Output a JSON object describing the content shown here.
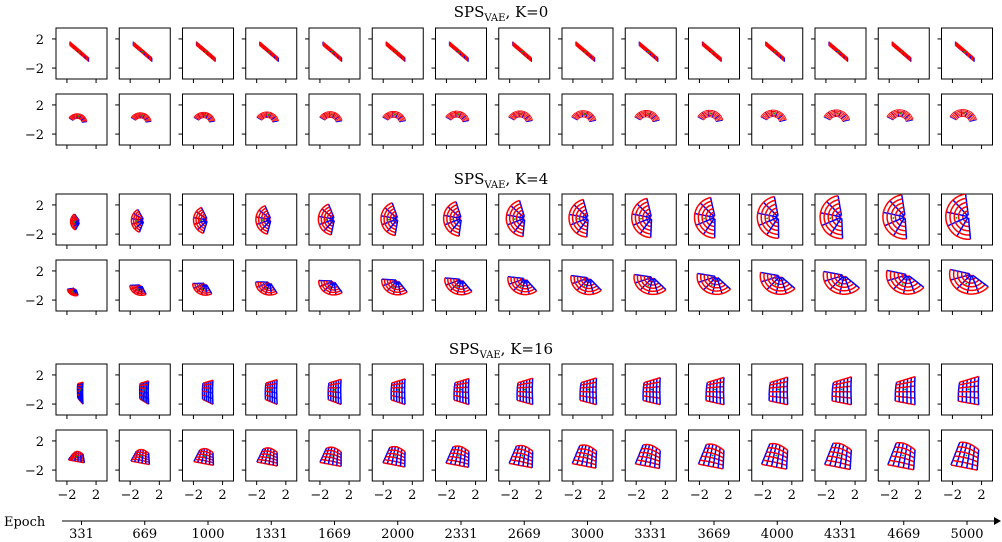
{
  "figure": {
    "epoch_label": "Epoch",
    "epochs": [
      "331",
      "669",
      "1000",
      "1331",
      "1669",
      "2000",
      "2331",
      "2669",
      "3000",
      "3331",
      "3669",
      "4000",
      "4331",
      "4669",
      "5000"
    ],
    "colors": {
      "grid_red": "#ff0000",
      "grid_blue": "#0000ff",
      "grid_green": "#00a000",
      "axis": "#000000"
    }
  },
  "chart_data": [
    {
      "type": "grid-deformation-panels",
      "title_prefix": "SPS",
      "title_subscript": "VAE",
      "title_suffix": ", K=0",
      "K": 0,
      "rows": 2,
      "columns": 15,
      "x_ticks": [
        "−2",
        "2"
      ],
      "y_ticks": [
        "2",
        "−2"
      ],
      "xlim": [
        -3.5,
        3.5
      ],
      "ylim": [
        -3.5,
        3.5
      ]
    },
    {
      "type": "grid-deformation-panels",
      "title_prefix": "SPS",
      "title_subscript": "VAE",
      "title_suffix": ", K=4",
      "K": 4,
      "rows": 2,
      "columns": 15,
      "x_ticks": [
        "−2",
        "2"
      ],
      "y_ticks": [
        "2",
        "−2"
      ],
      "xlim": [
        -3.5,
        3.5
      ],
      "ylim": [
        -3.5,
        3.5
      ]
    },
    {
      "type": "grid-deformation-panels",
      "title_prefix": "SPS",
      "title_subscript": "VAE",
      "title_suffix": ", K=16",
      "K": 16,
      "rows": 2,
      "columns": 15,
      "x_ticks": [
        "−2",
        "2"
      ],
      "y_ticks": [
        "2",
        "−2"
      ],
      "xlim": [
        -3.5,
        3.5
      ],
      "ylim": [
        -3.5,
        3.5
      ]
    }
  ]
}
